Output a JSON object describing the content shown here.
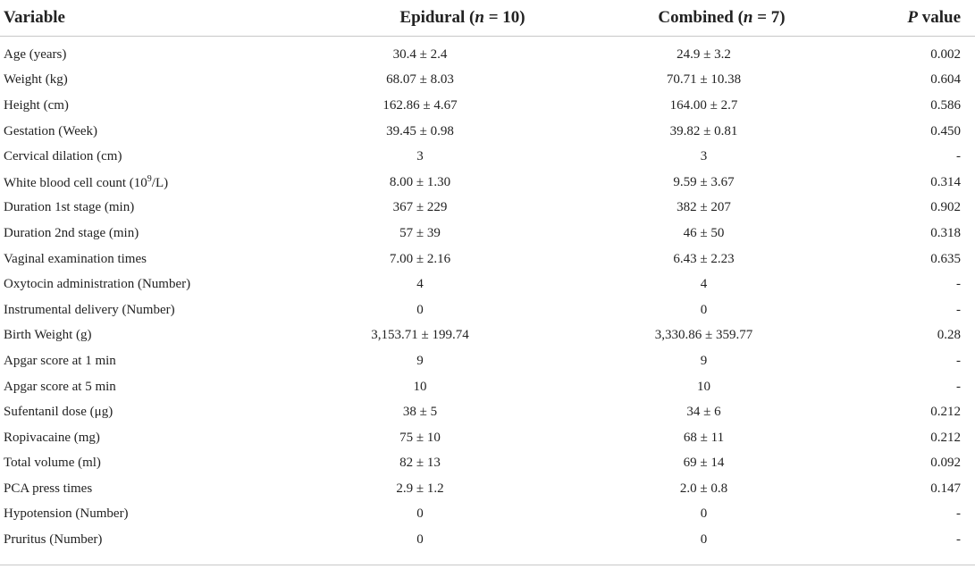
{
  "headers": {
    "variable": "Variable",
    "epidural": "Epidural (",
    "epidural_n": "n",
    "epidural_eq": " = 10)",
    "combined": "Combined (",
    "combined_n": "n",
    "combined_eq": " = 7)",
    "p_italic": "P",
    "p_rest": " value"
  },
  "rows": [
    {
      "variable": "Age (years)",
      "epidural": "30.4 ± 2.4",
      "combined": "24.9 ± 3.2",
      "p": "0.002"
    },
    {
      "variable": "Weight (kg)",
      "epidural": "68.07 ± 8.03",
      "combined": "70.71 ± 10.38",
      "p": "0.604"
    },
    {
      "variable": "Height (cm)",
      "epidural": "162.86 ± 4.67",
      "combined": "164.00 ± 2.7",
      "p": "0.586"
    },
    {
      "variable": "Gestation (Week)",
      "epidural": "39.45 ± 0.98",
      "combined": "39.82 ± 0.81",
      "p": "0.450"
    },
    {
      "variable": "Cervical dilation (cm)",
      "epidural": "3",
      "combined": "3",
      "p": "-"
    },
    {
      "variable_pre": "White blood cell count (10",
      "variable_sup": "9",
      "variable_post": "/L)",
      "epidural": "8.00 ± 1.30",
      "combined": "9.59 ± 3.67",
      "p": "0.314"
    },
    {
      "variable": "Duration 1st stage (min)",
      "epidural": "367 ± 229",
      "combined": "382 ± 207",
      "p": "0.902"
    },
    {
      "variable": "Duration 2nd stage (min)",
      "epidural": "57 ± 39",
      "combined": "46 ± 50",
      "p": "0.318"
    },
    {
      "variable": "Vaginal examination times",
      "epidural": "7.00 ± 2.16",
      "combined": "6.43 ± 2.23",
      "p": "0.635"
    },
    {
      "variable": "Oxytocin administration (Number)",
      "epidural": "4",
      "combined": "4",
      "p": "-"
    },
    {
      "variable": "Instrumental delivery (Number)",
      "epidural": "0",
      "combined": "0",
      "p": "-"
    },
    {
      "variable": "Birth Weight (g)",
      "epidural": "3,153.71 ± 199.74",
      "combined": "3,330.86 ± 359.77",
      "p": "0.28"
    },
    {
      "variable": "Apgar score at 1 min",
      "epidural": "9",
      "combined": "9",
      "p": "-"
    },
    {
      "variable": "Apgar score at 5 min",
      "epidural": "10",
      "combined": "10",
      "p": "-"
    },
    {
      "variable": "Sufentanil dose (μg)",
      "epidural": "38 ± 5",
      "combined": "34 ± 6",
      "p": "0.212"
    },
    {
      "variable": "Ropivacaine (mg)",
      "epidural": "75 ± 10",
      "combined": "68 ± 11",
      "p": "0.212"
    },
    {
      "variable": "Total volume (ml)",
      "epidural": "82 ± 13",
      "combined": "69 ± 14",
      "p": "0.092"
    },
    {
      "variable": "PCA press times",
      "epidural": "2.9 ± 1.2",
      "combined": "2.0 ± 0.8",
      "p": "0.147"
    },
    {
      "variable": "Hypotension (Number)",
      "epidural": "0",
      "combined": "0",
      "p": "-"
    },
    {
      "variable": "Pruritus (Number)",
      "epidural": "0",
      "combined": "0",
      "p": "-"
    }
  ]
}
